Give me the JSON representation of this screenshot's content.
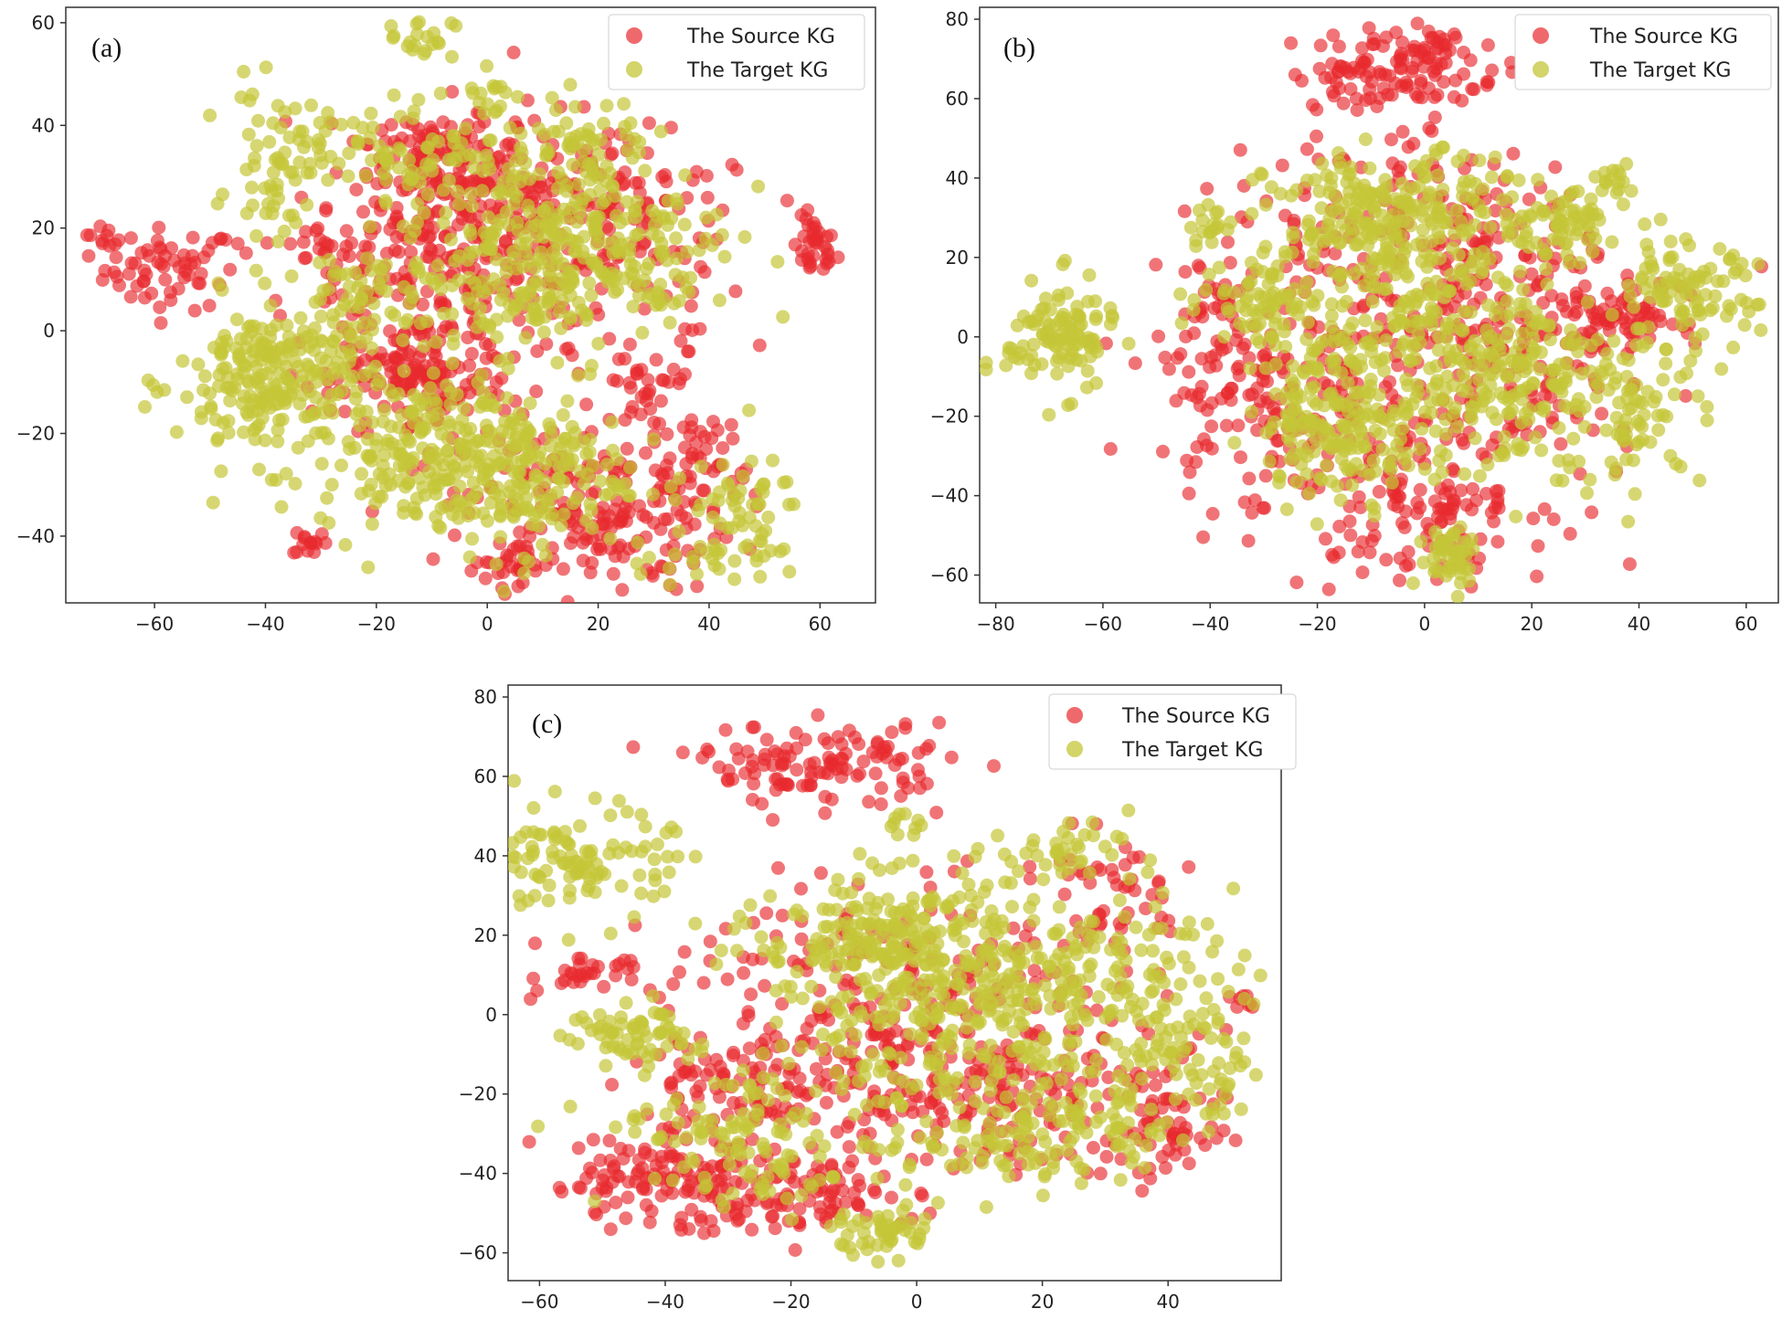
{
  "colors": {
    "source": "#e82a2e",
    "target": "#c4c637"
  },
  "chart_data": [
    {
      "type": "scatter",
      "panel_label": "(a)",
      "xlim": [
        -76,
        70
      ],
      "ylim": [
        -53,
        63
      ],
      "xticks": [
        -60,
        -40,
        -20,
        0,
        20,
        40,
        60
      ],
      "yticks": [
        -40,
        -20,
        0,
        20,
        40,
        60
      ],
      "legend": [
        "The Source KG",
        "The Target KG"
      ],
      "legend_position": "top-right",
      "series": [
        {
          "name": "The Source KG",
          "clusters": [
            [
              -57,
              12,
              6,
              4,
              60
            ],
            [
              -70,
              17,
              2,
              2,
              10
            ],
            [
              59,
              16,
              2,
              3,
              35
            ],
            [
              -32,
              -41,
              1.5,
              1.5,
              14
            ],
            [
              -12,
              35,
              7,
              5,
              80
            ],
            [
              -3,
              22,
              9,
              8,
              110
            ],
            [
              10,
              28,
              12,
              8,
              90
            ],
            [
              30,
              20,
              10,
              8,
              60
            ],
            [
              -15,
              5,
              10,
              10,
              120
            ],
            [
              -12,
              -10,
              8,
              6,
              110
            ],
            [
              20,
              -35,
              12,
              8,
              200
            ],
            [
              30,
              -12,
              5,
              6,
              40
            ],
            [
              40,
              -25,
              4,
              4,
              25
            ],
            [
              -30,
              15,
              5,
              5,
              30
            ],
            [
              5,
              -45,
              4,
              2,
              25
            ],
            [
              10,
              10,
              15,
              12,
              120
            ]
          ]
        },
        {
          "name": "The Target KG",
          "clusters": [
            [
              -38,
              -10,
              9,
              8,
              240
            ],
            [
              -38,
              33,
              4,
              7,
              60
            ],
            [
              -12,
              57,
              3,
              2,
              20
            ],
            [
              1,
              47,
              3,
              3,
              15
            ],
            [
              -25,
              5,
              6,
              6,
              50
            ],
            [
              5,
              14,
              10,
              12,
              240
            ],
            [
              25,
              20,
              10,
              8,
              110
            ],
            [
              18,
              38,
              6,
              4,
              40
            ],
            [
              -12,
              -25,
              9,
              7,
              150
            ],
            [
              5,
              -27,
              10,
              8,
              200
            ],
            [
              45,
              -37,
              6,
              6,
              60
            ],
            [
              30,
              10,
              5,
              5,
              30
            ],
            [
              35,
              -45,
              4,
              2,
              15
            ],
            [
              -15,
              35,
              10,
              5,
              80
            ]
          ]
        }
      ]
    },
    {
      "type": "scatter",
      "panel_label": "(b)",
      "xlim": [
        -83,
        66
      ],
      "ylim": [
        -67,
        83
      ],
      "xticks": [
        -80,
        -60,
        -40,
        -20,
        0,
        20,
        40,
        60
      ],
      "yticks": [
        -60,
        -40,
        -20,
        0,
        20,
        40,
        60,
        80
      ],
      "legend": [
        "The Source KG",
        "The Target KG"
      ],
      "legend_position": "top-right",
      "series": [
        {
          "name": "The Source KG",
          "clusters": [
            [
              -5,
              67,
              10,
              5,
              110
            ],
            [
              0,
              74,
              3,
              2,
              20
            ],
            [
              -30,
              -15,
              10,
              15,
              170
            ],
            [
              15,
              -5,
              15,
              15,
              200
            ],
            [
              0,
              -40,
              12,
              10,
              140
            ],
            [
              38,
              5,
              5,
              4,
              60
            ],
            [
              -40,
              10,
              4,
              5,
              25
            ],
            [
              -10,
              25,
              15,
              15,
              120
            ],
            [
              20,
              25,
              10,
              8,
              50
            ]
          ]
        },
        {
          "name": "The Target KG",
          "clusters": [
            [
              -68,
              0,
              5,
              7,
              110
            ],
            [
              -5,
              30,
              12,
              8,
              220
            ],
            [
              -15,
              -20,
              8,
              10,
              200
            ],
            [
              15,
              -10,
              10,
              12,
              200
            ],
            [
              25,
              28,
              5,
              4,
              60
            ],
            [
              48,
              10,
              7,
              7,
              100
            ],
            [
              40,
              -20,
              6,
              8,
              70
            ],
            [
              5,
              -55,
              3,
              4,
              50
            ],
            [
              -30,
              10,
              6,
              6,
              60
            ],
            [
              35,
              40,
              2,
              2,
              15
            ],
            [
              -5,
              10,
              15,
              12,
              150
            ],
            [
              -40,
              28,
              2,
              2,
              15
            ]
          ]
        }
      ]
    },
    {
      "type": "scatter",
      "panel_label": "(c)",
      "xlim": [
        -65,
        58
      ],
      "ylim": [
        -67,
        83
      ],
      "xticks": [
        -60,
        -40,
        -20,
        0,
        20,
        40
      ],
      "yticks": [
        -60,
        -40,
        -20,
        0,
        20,
        40,
        60,
        80
      ],
      "legend": [
        "The Source KG",
        "The Target KG"
      ],
      "legend_position": "top-right",
      "series": [
        {
          "name": "The Source KG",
          "clusters": [
            [
              -15,
              63,
              10,
              5,
              120
            ],
            [
              -52,
              10,
              4,
              2,
              30
            ],
            [
              -40,
              -42,
              10,
              6,
              120
            ],
            [
              -30,
              -20,
              8,
              8,
              80
            ],
            [
              0,
              0,
              20,
              15,
              280
            ],
            [
              40,
              -30,
              5,
              6,
              50
            ],
            [
              -20,
              -45,
              10,
              5,
              100
            ],
            [
              10,
              -20,
              15,
              10,
              150
            ],
            [
              52,
              3,
              1.5,
              1.5,
              8
            ],
            [
              30,
              30,
              8,
              8,
              50
            ]
          ]
        },
        {
          "name": "The Target KG",
          "clusters": [
            [
              -53,
              38,
              7,
              7,
              110
            ],
            [
              -5,
              20,
              10,
              8,
              200
            ],
            [
              5,
              0,
              15,
              12,
              250
            ],
            [
              30,
              10,
              10,
              10,
              140
            ],
            [
              20,
              -28,
              10,
              8,
              140
            ],
            [
              -25,
              -30,
              12,
              10,
              140
            ],
            [
              -5,
              -55,
              4,
              3,
              50
            ],
            [
              45,
              -15,
              6,
              8,
              60
            ],
            [
              -45,
              -5,
              5,
              4,
              60
            ],
            [
              20,
              40,
              6,
              4,
              40
            ],
            [
              -3,
              47,
              2,
              2,
              10
            ]
          ]
        }
      ]
    }
  ]
}
